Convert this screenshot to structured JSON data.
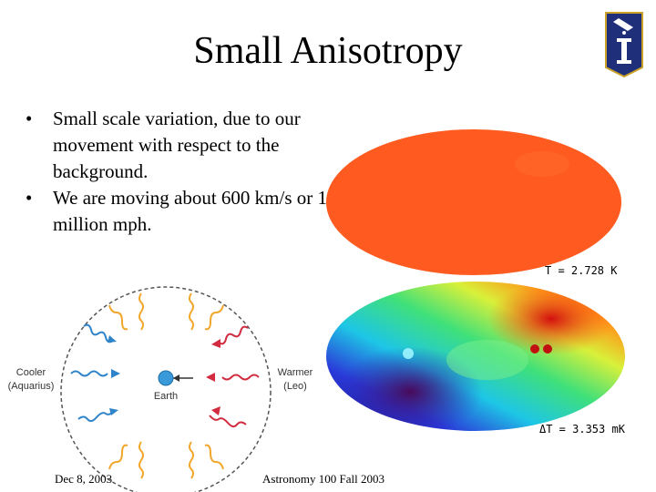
{
  "slide": {
    "title": "Small Anisotropy",
    "bullets": [
      "Small scale variation, due to our movement with respect to the background.",
      "We are moving about 600 km/s or 1.3 million mph."
    ],
    "bullet_symbol": "•"
  },
  "maps": {
    "uniform_label": "T = 2.728 K",
    "dipole_label": "ΔT = 3.353 mK",
    "uniform_color": "#ff5a1f"
  },
  "diagram": {
    "cooler_line1": "Cooler",
    "cooler_line2": "(Aquarius)",
    "warmer_line1": "Warmer",
    "warmer_line2": "(Leo)",
    "center_label": "Earth",
    "wave_colors": {
      "blue": "#2f83c8",
      "yellow": "#f2a62a",
      "red": "#d22b3f"
    }
  },
  "footer": {
    "date": "Dec 8, 2003",
    "course": "Astronomy 100 Fall 2003"
  },
  "logo": {
    "icon": "university-seal-icon",
    "color": "#1f2f7a"
  }
}
